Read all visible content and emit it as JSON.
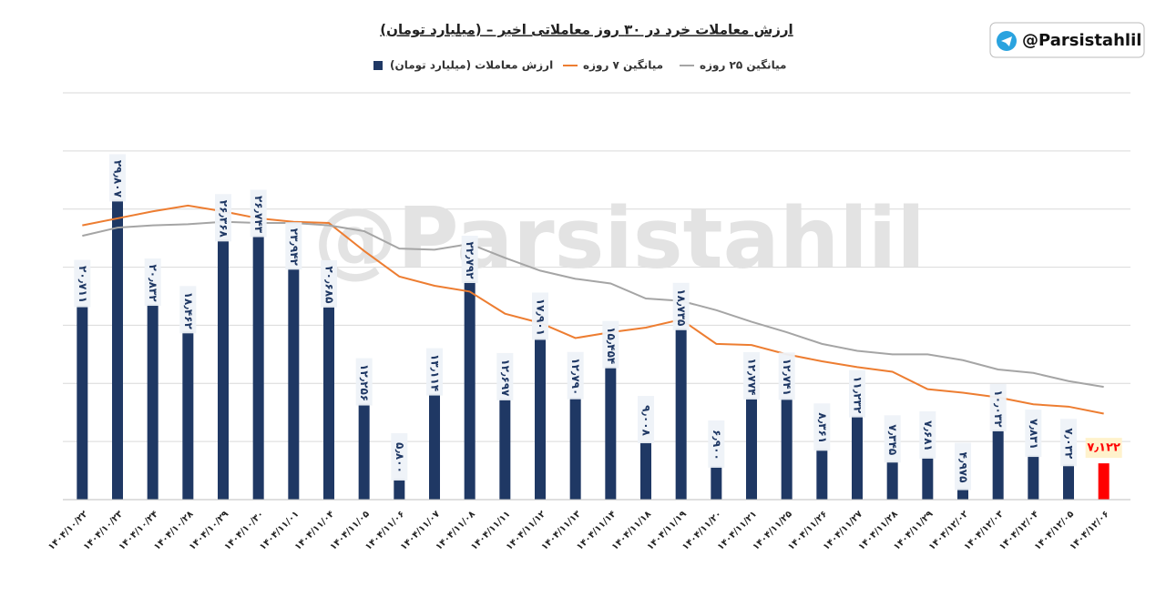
{
  "chart_data": {
    "type": "bar",
    "title": "ارزش معاملات خرد در ۳۰ روز معاملاتی اخیر – (میلیارد تومان)",
    "categories": [
      "۱۴۰۴/۱۰/۲۲",
      "۱۴۰۴/۱۰/۲۳",
      "۱۴۰۴/۱۰/۲۴",
      "۱۴۰۴/۱۰/۲۸",
      "۱۴۰۴/۱۰/۲۹",
      "۱۴۰۴/۱۰/۳۰",
      "۱۴۰۴/۱۱/۰۱",
      "۱۴۰۴/۱۱/۰۴",
      "۱۴۰۴/۱۱/۰۵",
      "۱۴۰۴/۱۱/۰۶",
      "۱۴۰۴/۱۱/۰۷",
      "۱۴۰۴/۱۱/۰۸",
      "۱۴۰۴/۱۱/۱۱",
      "۱۴۰۴/۱۱/۱۲",
      "۱۴۰۴/۱۱/۱۳",
      "۱۴۰۴/۱۱/۱۴",
      "۱۴۰۴/۱۱/۱۸",
      "۱۴۰۴/۱۱/۱۹",
      "۱۴۰۴/۱۱/۲۰",
      "۱۴۰۴/۱۱/۲۱",
      "۱۴۰۴/۱۱/۲۵",
      "۱۴۰۴/۱۱/۲۶",
      "۱۴۰۴/۱۱/۲۷",
      "۱۴۰۴/۱۱/۲۸",
      "۱۴۰۴/۱۱/۲۹",
      "۱۴۰۴/۱۲/۰۲",
      "۱۴۰۴/۱۲/۰۳",
      "۱۴۰۴/۱۲/۰۴",
      "۱۴۰۴/۱۲/۰۵",
      "۱۴۰۴/۱۲/۰۶"
    ],
    "series": [
      {
        "name": "ارزش معاملات (میلیارد تومان)",
        "type": "bar",
        "color": "#1f3864",
        "colors": [
          "#1f3864",
          "#1f3864",
          "#1f3864",
          "#1f3864",
          "#1f3864",
          "#1f3864",
          "#1f3864",
          "#1f3864",
          "#1f3864",
          "#1f3864",
          "#1f3864",
          "#1f3864",
          "#1f3864",
          "#1f3864",
          "#1f3864",
          "#1f3864",
          "#1f3864",
          "#1f3864",
          "#1f3864",
          "#1f3864",
          "#1f3864",
          "#1f3864",
          "#1f3864",
          "#1f3864",
          "#1f3864",
          "#1f3864",
          "#1f3864",
          "#1f3864",
          "#1f3864",
          "#ff0000"
        ],
        "values": [
          20.711,
          29.807,
          20.832,
          18.462,
          26.368,
          26.743,
          23.942,
          20.685,
          12.256,
          5.8,
          13.114,
          22.792,
          12.697,
          17.901,
          12.79,
          15.454,
          9.008,
          18.735,
          6.9,
          12.774,
          12.741,
          8.361,
          11.232,
          7.345,
          7.681,
          4.975,
          10.032,
          7.831,
          7.032,
          7.122
        ],
        "value_labels": [
          "۲۰٫۷۱۱",
          "۲۹٫۸۰۷",
          "۲۰٫۸۳۲",
          "۱۸٫۴۶۲",
          "۲۶٫۳۶۸",
          "۲۶٫۷۴۳",
          "۲۳٫۹۴۲",
          "۲۰٫۶۸۵",
          "۱۲٫۲۵۶",
          "۵٫۸۰۰",
          "۱۳٫۱۱۴",
          "۲۲٫۷۹۲",
          "۱۲٫۶۹۷",
          "۱۷٫۹۰۱",
          "۱۲٫۷۹۰",
          "۱۵٫۴۵۴",
          "۹٫۰۰۸",
          "۱۸٫۷۳۵",
          "۶٫۹۰۰",
          "۱۲٫۷۷۴",
          "۱۲٫۷۴۱",
          "۸٫۳۶۱",
          "۱۱٫۲۳۲",
          "۷٫۳۴۵",
          "۷٫۶۸۱",
          "۴٫۹۷۵",
          "۱۰٫۰۳۲",
          "۷٫۸۳۱",
          "۷٫۰۳۲",
          "۷٫۱۲۲"
        ]
      },
      {
        "name": "میانگین ۷ روزه",
        "type": "line",
        "color": "#ed7d31",
        "values": [
          27.6,
          28.2,
          28.8,
          29.3,
          28.8,
          28.2,
          27.9,
          27.8,
          25.4,
          23.2,
          22.4,
          21.9,
          20.0,
          19.2,
          17.9,
          18.4,
          18.8,
          19.5,
          17.4,
          17.3,
          16.5,
          15.9,
          15.4,
          15.0,
          13.5,
          13.2,
          12.8,
          12.2,
          12.0,
          11.4
        ]
      },
      {
        "name": "میانگین ۲۵ روزه",
        "type": "line",
        "color": "#a5a5a5",
        "values": [
          26.7,
          27.4,
          27.6,
          27.7,
          27.9,
          27.8,
          27.8,
          27.6,
          27.1,
          25.6,
          25.5,
          26.0,
          24.8,
          23.7,
          23.0,
          22.6,
          21.3,
          21.1,
          20.3,
          19.3,
          18.4,
          17.4,
          16.8,
          16.5,
          16.5,
          16.0,
          15.2,
          14.9,
          14.2,
          13.7
        ]
      }
    ],
    "ylim": [
      4,
      39
    ],
    "yticks": [
      4,
      9,
      14,
      19,
      24,
      29,
      34,
      39
    ],
    "grid": true
  },
  "badge": "@Parsistahlil",
  "watermark": "@Parsistahlil"
}
